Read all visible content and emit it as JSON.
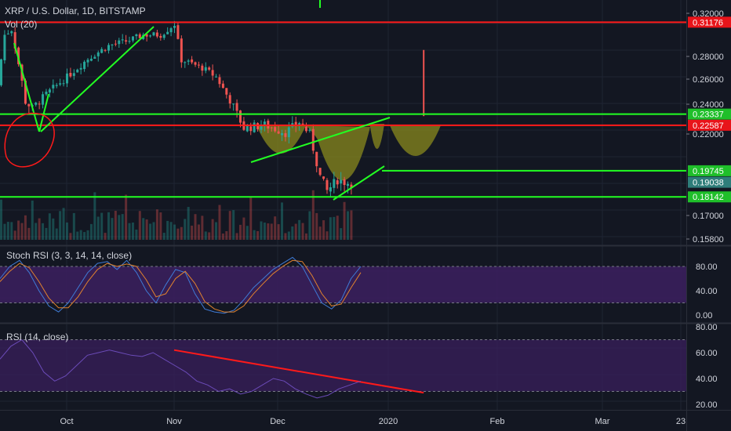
{
  "colors": {
    "background": "#131722",
    "grid": "#1f2433",
    "text": "#d1d4dc",
    "candle_up": "#26a69a",
    "candle_down": "#ef5350",
    "line_red": "#ff1a1a",
    "line_green": "#22ff22",
    "olive_fill": "#8a8a1e",
    "purple_band": "#3a1f5c",
    "stoch_k": "#3f7bd6",
    "stoch_d": "#e0822e",
    "rsi_line": "#6b4bb8"
  },
  "header": {
    "title": "XRP / U.S. Dollar, 1D, BITSTAMP",
    "volume_label": "Vol (20)"
  },
  "panes": {
    "stoch_label": "Stoch RSI (3, 3, 14, 14, close)",
    "rsi_label": "RSI (14, close)"
  },
  "chart_data": [
    {
      "type": "candlestick",
      "title": "XRP / U.S. Dollar, 1D, BITSTAMP",
      "price_axis_ticks": [
        "0.32000",
        "0.28000",
        "0.26000",
        "0.24000",
        "0.22000",
        "0.17000",
        "0.15800"
      ],
      "time_axis_ticks": [
        "Oct",
        "Nov",
        "Dec",
        "2020",
        "Feb",
        "Mar",
        "23"
      ],
      "ylim": [
        0.158,
        0.32
      ],
      "horizontal_levels": [
        {
          "price": 0.31176,
          "label": "0.31176",
          "color": "red"
        },
        {
          "price": 0.23337,
          "label": "0.23337",
          "color": "green"
        },
        {
          "price": 0.22587,
          "label": "0.22587",
          "color": "red"
        },
        {
          "price": 0.19745,
          "label": "0.19745",
          "color": "green"
        },
        {
          "price": 0.19038,
          "label": "0.19038",
          "color": "current"
        },
        {
          "price": 0.18142,
          "label": "0.18142",
          "color": "green"
        }
      ],
      "price_path": [
        [
          "2019-09-16",
          0.255
        ],
        [
          "2019-09-18",
          0.3
        ],
        [
          "2019-09-20",
          0.305
        ],
        [
          "2019-09-24",
          0.242
        ],
        [
          "2019-09-26",
          0.237
        ],
        [
          "2019-09-30",
          0.248
        ],
        [
          "2019-10-06",
          0.262
        ],
        [
          "2019-10-12",
          0.278
        ],
        [
          "2019-10-18",
          0.29
        ],
        [
          "2019-10-24",
          0.295
        ],
        [
          "2019-10-28",
          0.3
        ],
        [
          "2019-11-02",
          0.3
        ],
        [
          "2019-11-06",
          0.31
        ],
        [
          "2019-11-08",
          0.277
        ],
        [
          "2019-11-14",
          0.27
        ],
        [
          "2019-11-18",
          0.262
        ],
        [
          "2019-11-22",
          0.243
        ],
        [
          "2019-11-26",
          0.224
        ],
        [
          "2019-12-02",
          0.226
        ],
        [
          "2019-12-08",
          0.221
        ],
        [
          "2019-12-12",
          0.228
        ],
        [
          "2019-12-15",
          0.22
        ],
        [
          "2019-12-18",
          0.194
        ],
        [
          "2019-12-20",
          0.185
        ],
        [
          "2019-12-23",
          0.192
        ],
        [
          "2019-12-26",
          0.19
        ]
      ],
      "forecast_spike": {
        "date": "2020-01-12",
        "low": 0.232,
        "high": 0.286
      }
    },
    {
      "type": "line",
      "title": "Stoch RSI (3, 3, 14, 14, close)",
      "tick_labels": [
        "80.00",
        "40.00",
        "0.00"
      ],
      "ylim": [
        -5,
        105
      ],
      "band": [
        20,
        80
      ],
      "series": [
        {
          "values_k": [
            60,
            80,
            90,
            70,
            40,
            15,
            5,
            20,
            45,
            70,
            85,
            88,
            75,
            90,
            70,
            40,
            20,
            50,
            75,
            70,
            35,
            10,
            5,
            3,
            8,
            25,
            45,
            60,
            75,
            85,
            95,
            80,
            50,
            20,
            10,
            25,
            60,
            80
          ]
        },
        {
          "values_d": [
            55,
            72,
            85,
            78,
            55,
            28,
            12,
            12,
            30,
            55,
            75,
            85,
            80,
            84,
            80,
            58,
            30,
            35,
            60,
            72,
            52,
            22,
            10,
            5,
            5,
            15,
            35,
            52,
            68,
            80,
            90,
            88,
            65,
            35,
            15,
            18,
            45,
            70
          ]
        }
      ]
    },
    {
      "type": "line",
      "title": "RSI (14, close)",
      "tick_labels": [
        "80.00",
        "60.00",
        "40.00",
        "20.00"
      ],
      "ylim": [
        18,
        82
      ],
      "band": [
        30,
        70
      ],
      "series": [
        {
          "values": [
            55,
            65,
            70,
            60,
            45,
            38,
            42,
            50,
            58,
            60,
            62,
            60,
            58,
            57,
            60,
            55,
            50,
            45,
            38,
            35,
            30,
            32,
            28,
            30,
            35,
            40,
            38,
            32,
            28,
            25,
            27,
            32,
            35,
            38
          ]
        }
      ],
      "trendline": {
        "from_date": "2019-11-01",
        "from_value": 62,
        "to_date": "2020-01-12",
        "to_value": 29
      }
    }
  ]
}
